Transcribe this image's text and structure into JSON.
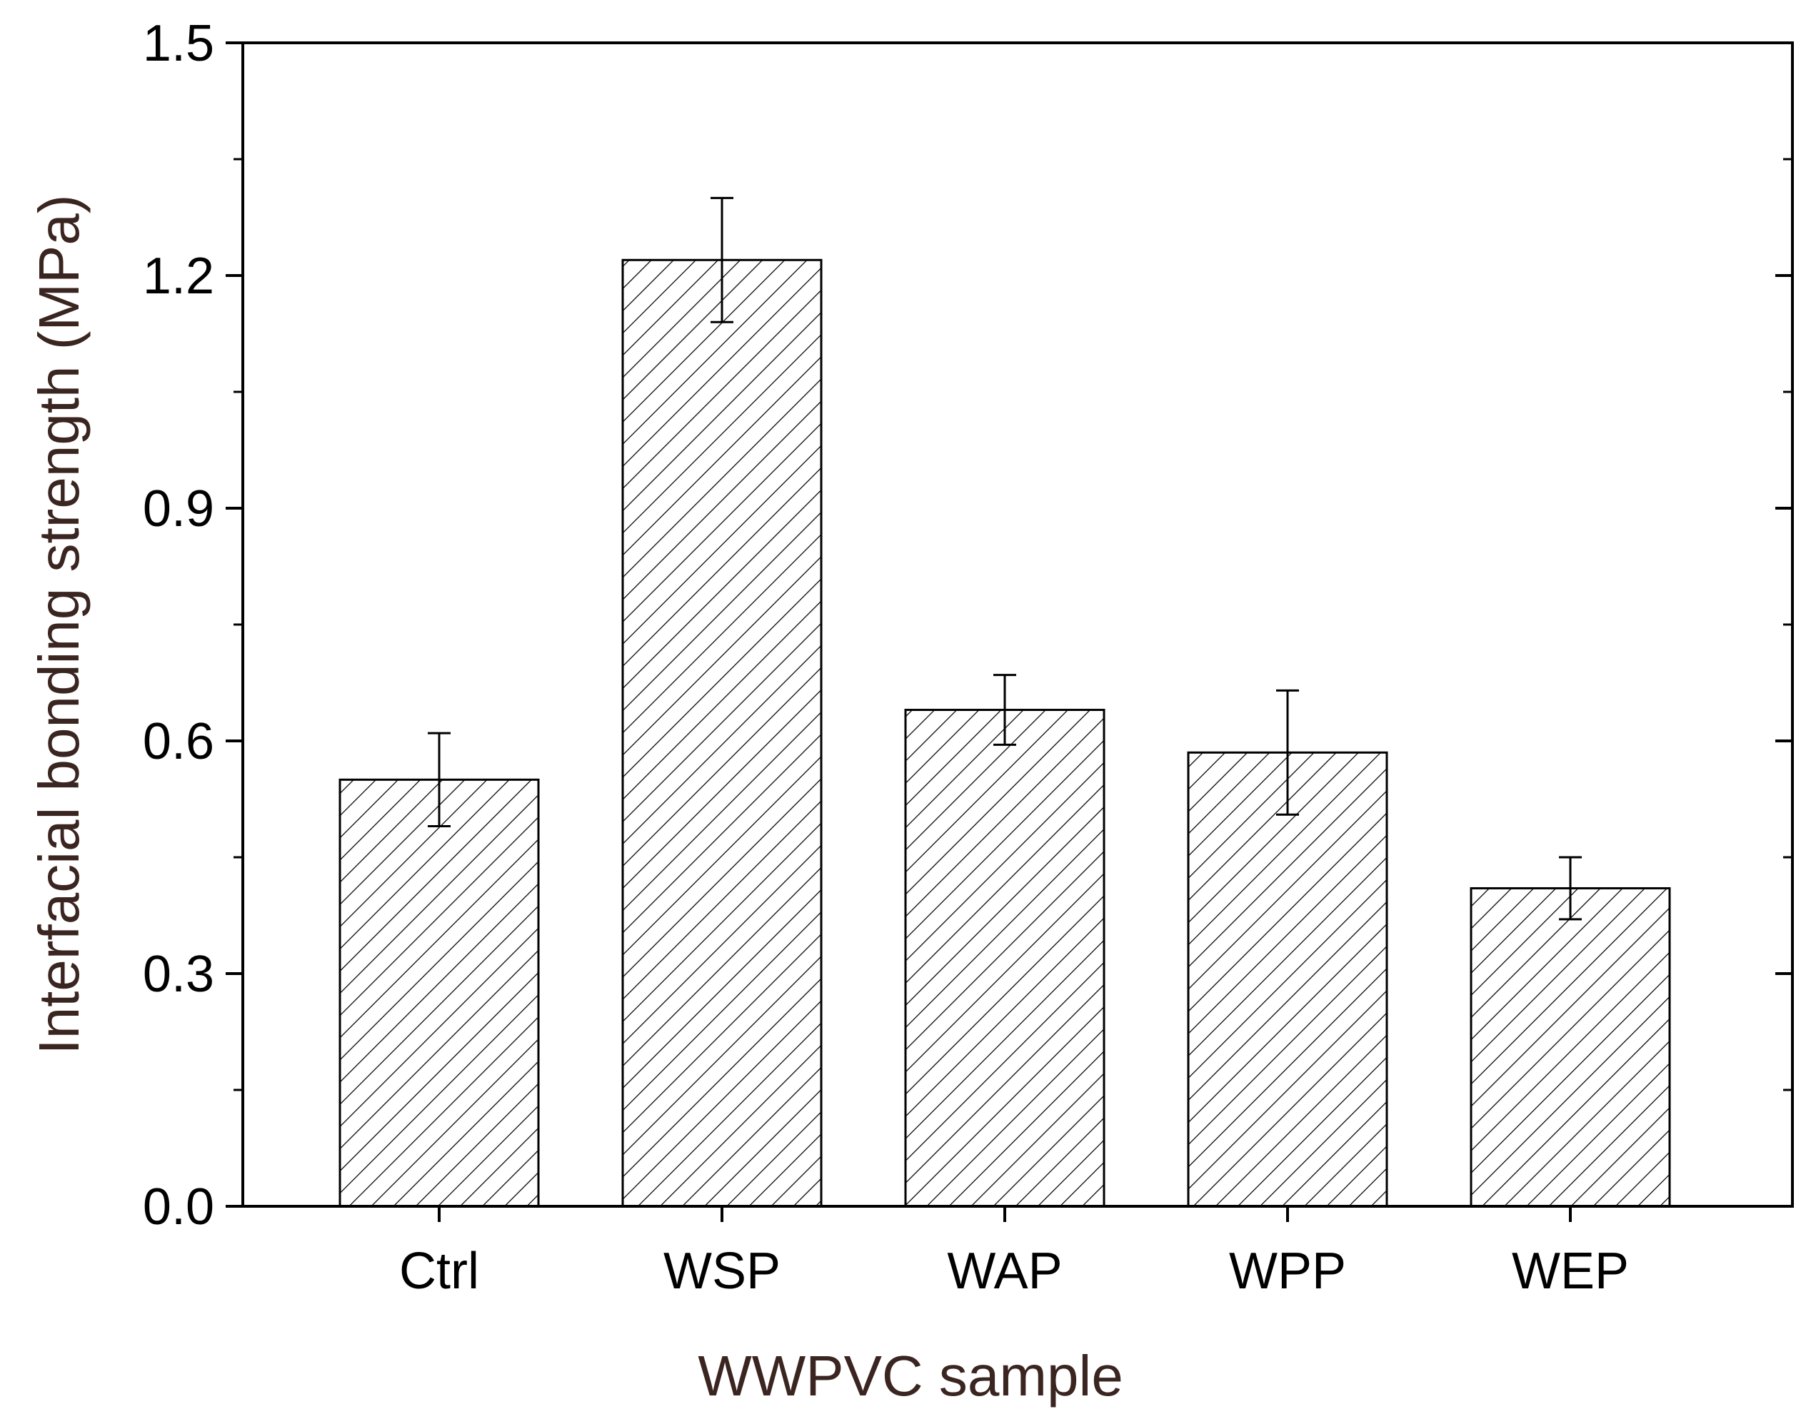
{
  "chart_data": {
    "type": "bar",
    "title": "",
    "xlabel": "WWPVC sample",
    "ylabel": "Interfacial bonding strength (MPa)",
    "categories": [
      "Ctrl",
      "WSP",
      "WAP",
      "WPP",
      "WEP"
    ],
    "values": [
      0.55,
      1.22,
      0.64,
      0.585,
      0.41
    ],
    "errors": [
      0.06,
      0.08,
      0.045,
      0.08,
      0.04
    ],
    "ylim": [
      0,
      1.5
    ],
    "yticks": [
      "0.0",
      "0.3",
      "0.6",
      "0.9",
      "1.2",
      "1.5"
    ],
    "grid": false,
    "bar_fill": "hatched",
    "colors": {
      "bar_stroke": "#000000",
      "axis": "#000000",
      "label_text": "#3a2520"
    }
  }
}
